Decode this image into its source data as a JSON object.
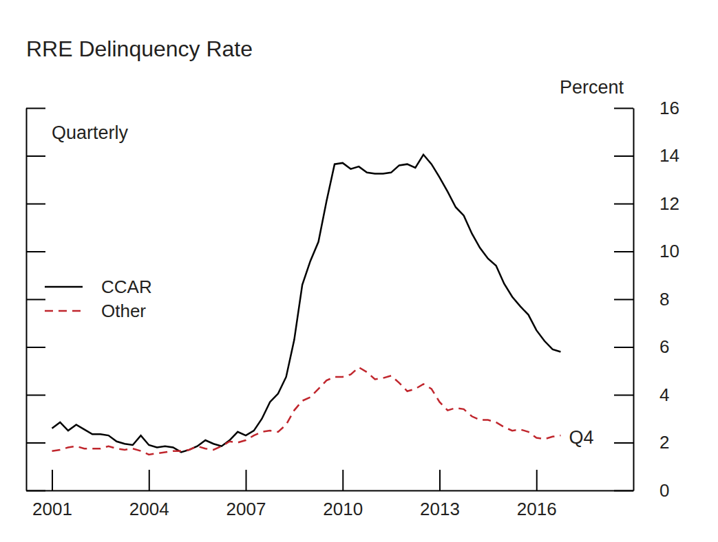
{
  "chart_data": {
    "type": "line",
    "title": "RRE Delinquency Rate",
    "y_label": "Percent",
    "annotations": [
      "Quarterly",
      "Q4"
    ],
    "x": [
      2001,
      2001.25,
      2001.5,
      2001.75,
      2002,
      2002.25,
      2002.5,
      2002.75,
      2003,
      2003.25,
      2003.5,
      2003.75,
      2004,
      2004.25,
      2004.5,
      2004.75,
      2005,
      2005.25,
      2005.5,
      2005.75,
      2006,
      2006.25,
      2006.5,
      2006.75,
      2007,
      2007.25,
      2007.5,
      2007.75,
      2008,
      2008.25,
      2008.5,
      2008.75,
      2009,
      2009.25,
      2009.5,
      2009.75,
      2010,
      2010.25,
      2010.5,
      2010.75,
      2011,
      2011.25,
      2011.5,
      2011.75,
      2012,
      2012.25,
      2012.5,
      2012.75,
      2013,
      2013.25,
      2013.5,
      2013.75,
      2014,
      2014.25,
      2014.5,
      2014.75,
      2015,
      2015.25,
      2015.5,
      2015.75,
      2016,
      2016.25,
      2016.5,
      2016.75
    ],
    "series": [
      {
        "name": "CCAR",
        "color": "#000000",
        "line_style": "solid",
        "values": [
          2.6,
          2.85,
          2.5,
          2.75,
          2.55,
          2.35,
          2.35,
          2.3,
          2.05,
          1.95,
          1.9,
          2.3,
          1.9,
          1.8,
          1.85,
          1.8,
          1.6,
          1.7,
          1.85,
          2.1,
          1.95,
          1.85,
          2.1,
          2.45,
          2.3,
          2.5,
          3.0,
          3.7,
          4.05,
          4.75,
          6.3,
          8.6,
          9.6,
          10.4,
          12.1,
          13.65,
          13.7,
          13.45,
          13.55,
          13.3,
          13.25,
          13.25,
          13.3,
          13.6,
          13.65,
          13.5,
          14.05,
          13.65,
          13.1,
          12.5,
          11.85,
          11.5,
          10.75,
          10.15,
          9.7,
          9.4,
          8.65,
          8.1,
          7.7,
          7.35,
          6.7,
          6.25,
          5.9,
          5.8
        ]
      },
      {
        "name": "Other",
        "color": "#c0262d",
        "line_style": "dashed",
        "values": [
          1.65,
          1.7,
          1.8,
          1.85,
          1.75,
          1.75,
          1.75,
          1.85,
          1.75,
          1.7,
          1.75,
          1.65,
          1.5,
          1.55,
          1.6,
          1.65,
          1.65,
          1.7,
          1.85,
          1.75,
          1.7,
          1.85,
          2.05,
          2.0,
          2.1,
          2.3,
          2.45,
          2.5,
          2.45,
          2.75,
          3.35,
          3.75,
          3.9,
          4.25,
          4.6,
          4.75,
          4.75,
          4.85,
          5.15,
          4.95,
          4.65,
          4.7,
          4.8,
          4.5,
          4.15,
          4.25,
          4.45,
          4.25,
          3.7,
          3.35,
          3.45,
          3.4,
          3.1,
          2.95,
          2.95,
          2.85,
          2.65,
          2.5,
          2.55,
          2.45,
          2.2,
          2.15,
          2.25,
          2.3
        ]
      }
    ],
    "xlim": [
      2000.2,
      2019
    ],
    "xticks": [
      2001,
      2004,
      2007,
      2010,
      2013,
      2016
    ],
    "ylim": [
      0,
      16
    ],
    "yticks": [
      0,
      2,
      4,
      6,
      8,
      10,
      12,
      14,
      16
    ],
    "legend": "left",
    "grid": false
  }
}
